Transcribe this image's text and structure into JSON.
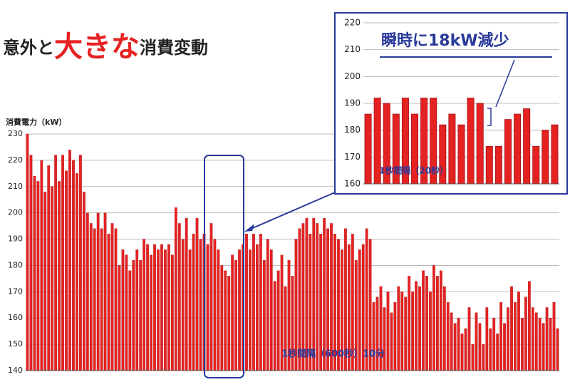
{
  "header": {
    "title_parts": [
      "意外と",
      "大きな",
      "消費変動"
    ]
  },
  "chart_data": [
    {
      "type": "bar",
      "ylabel": "消費電力（kW）",
      "annotation": "1秒間隔（600秒）10分",
      "color": "#e52222",
      "grid": true,
      "ylim": [
        140,
        230
      ],
      "yticks": [
        140,
        150,
        160,
        170,
        180,
        190,
        200,
        210,
        220,
        230
      ],
      "values": [
        230,
        222,
        214,
        212,
        220,
        208,
        218,
        210,
        222,
        212,
        222,
        216,
        224,
        220,
        215,
        222,
        208,
        200,
        196,
        194,
        200,
        194,
        200,
        192,
        196,
        194,
        180,
        186,
        184,
        178,
        182,
        186,
        182,
        190,
        188,
        184,
        188,
        186,
        188,
        186,
        188,
        184,
        202,
        196,
        190,
        198,
        186,
        192,
        198,
        190,
        192,
        188,
        196,
        190,
        186,
        180,
        178,
        176,
        184,
        182,
        186,
        188,
        192,
        186,
        192,
        188,
        192,
        182,
        190,
        186,
        174,
        178,
        184,
        172,
        182,
        176,
        190,
        194,
        196,
        198,
        192,
        198,
        196,
        192,
        198,
        194,
        196,
        192,
        190,
        186,
        194,
        188,
        192,
        182,
        186,
        188,
        194,
        190,
        166,
        168,
        172,
        164,
        170,
        162,
        166,
        172,
        170,
        168,
        176,
        170,
        174,
        172,
        178,
        176,
        170,
        180,
        176,
        178,
        172,
        166,
        162,
        158,
        160,
        154,
        156,
        164,
        150,
        162,
        158,
        150,
        164,
        156,
        160,
        154,
        166,
        158,
        164,
        172,
        166,
        170,
        160,
        168,
        174,
        164,
        162,
        160,
        158,
        164,
        160,
        166,
        156
      ]
    },
    {
      "type": "bar",
      "annotation": "瞬時に18kW減少",
      "note": "1秒間隔（20秒）",
      "color": "#e52222",
      "grid": true,
      "ylim": [
        160,
        220
      ],
      "yticks": [
        160,
        170,
        180,
        190,
        200,
        210,
        220
      ],
      "values": [
        186,
        192,
        190,
        186,
        192,
        186,
        192,
        192,
        182,
        186,
        182,
        192,
        190,
        174,
        174,
        184,
        186,
        188,
        174,
        180,
        182
      ]
    }
  ]
}
